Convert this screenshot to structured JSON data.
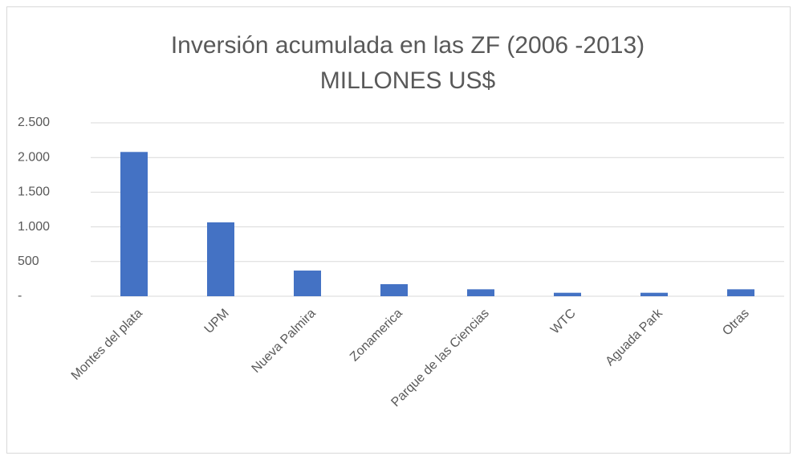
{
  "chart_data": {
    "type": "bar",
    "title": "Inversión acumulada en las ZF (2006 -2013)",
    "subtitle": "MILLONES US$",
    "categories": [
      "Montes del plata",
      "UPM",
      "Nueva Palmira",
      "Zonamerica",
      "Parque de las Ciencias",
      "WTC",
      "Aguada Park",
      "Otras"
    ],
    "values": [
      2080,
      1065,
      370,
      174,
      100,
      50,
      50,
      100
    ],
    "color": "#4472c4",
    "ylim": [
      0,
      2500
    ],
    "yticks": [
      {
        "value": 0,
        "label": "-"
      },
      500,
      {
        "value": 1000,
        "label": "1.000"
      },
      {
        "value": 1500,
        "label": "1.500"
      },
      {
        "value": 2000,
        "label": "2.000"
      },
      {
        "value": 2500,
        "label": "2.500"
      }
    ],
    "grid": true
  }
}
